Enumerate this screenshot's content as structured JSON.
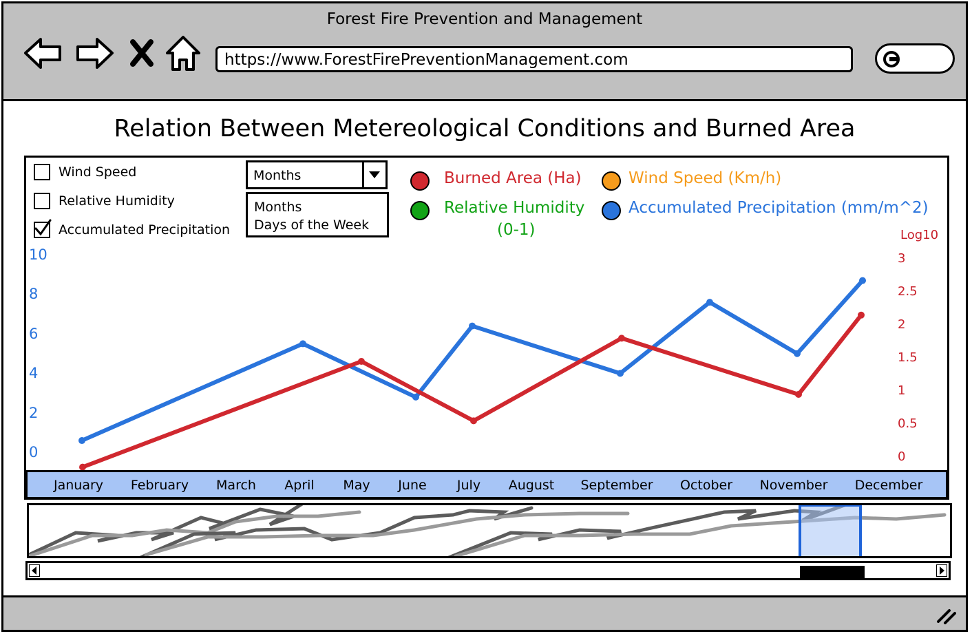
{
  "window": {
    "title": "Forest Fire Prevention and Management",
    "url": "https://www.ForestFirePreventionManagement.com"
  },
  "toolbar": {
    "icons": [
      "back-arrow-icon",
      "forward-arrow-icon",
      "close-x-icon",
      "home-icon",
      "search-icon"
    ]
  },
  "page": {
    "heading": "Relation Between Metereological Conditions and Burned Area"
  },
  "options": [
    {
      "label": "Wind Speed",
      "checked": false
    },
    {
      "label": "Relative Humidity",
      "checked": false
    },
    {
      "label": "Accumulated Precipitation",
      "checked": true
    }
  ],
  "period_select": {
    "value": "Months",
    "options": [
      "Months",
      "Days of the Week"
    ]
  },
  "legend": [
    {
      "label": "Burned Area (Ha)",
      "color": "#d0282f"
    },
    {
      "label": "Wind Speed (Km/h)",
      "color": "#f59b1c"
    },
    {
      "label": "Relative Humidity",
      "label2": "(0-1)",
      "color": "#12a316"
    },
    {
      "label": "Accumulated Precipitation (mm/m^2)",
      "color": "#2a74dc"
    }
  ],
  "chart_data": {
    "type": "line",
    "categories": [
      "January",
      "February",
      "March",
      "April",
      "May",
      "June",
      "July",
      "August",
      "September",
      "October",
      "November",
      "December"
    ],
    "series": [
      {
        "name": "Accumulated Precipitation (mm/m^2)",
        "axis": "left",
        "color": "#2a74dc",
        "points": [
          [
            "January",
            0.8
          ],
          [
            "April",
            5.7
          ],
          [
            "June",
            3.0
          ],
          [
            "July",
            6.6
          ],
          [
            "September",
            4.2
          ],
          [
            "October",
            7.8
          ],
          [
            "November",
            5.2
          ],
          [
            "December",
            8.9
          ]
        ]
      },
      {
        "name": "Burned Area (Ha)",
        "axis": "right",
        "color": "#d0282f",
        "points": [
          [
            "January",
            -0.1
          ],
          [
            "May",
            1.5
          ],
          [
            "July",
            0.6
          ],
          [
            "September",
            1.85
          ],
          [
            "November",
            1.0
          ],
          [
            "December",
            2.2
          ]
        ]
      }
    ],
    "y_left": {
      "ticks": [
        "10",
        "8",
        "6",
        "4",
        "2",
        "0"
      ],
      "range": [
        0,
        10
      ]
    },
    "y_right": {
      "label": "Log10",
      "ticks": [
        "3",
        "2.5",
        "2",
        "1.5",
        "1",
        "0.5",
        "0"
      ],
      "range": [
        0,
        3
      ]
    }
  },
  "overview": {
    "window_start": 0.9,
    "window_end": 0.97
  }
}
